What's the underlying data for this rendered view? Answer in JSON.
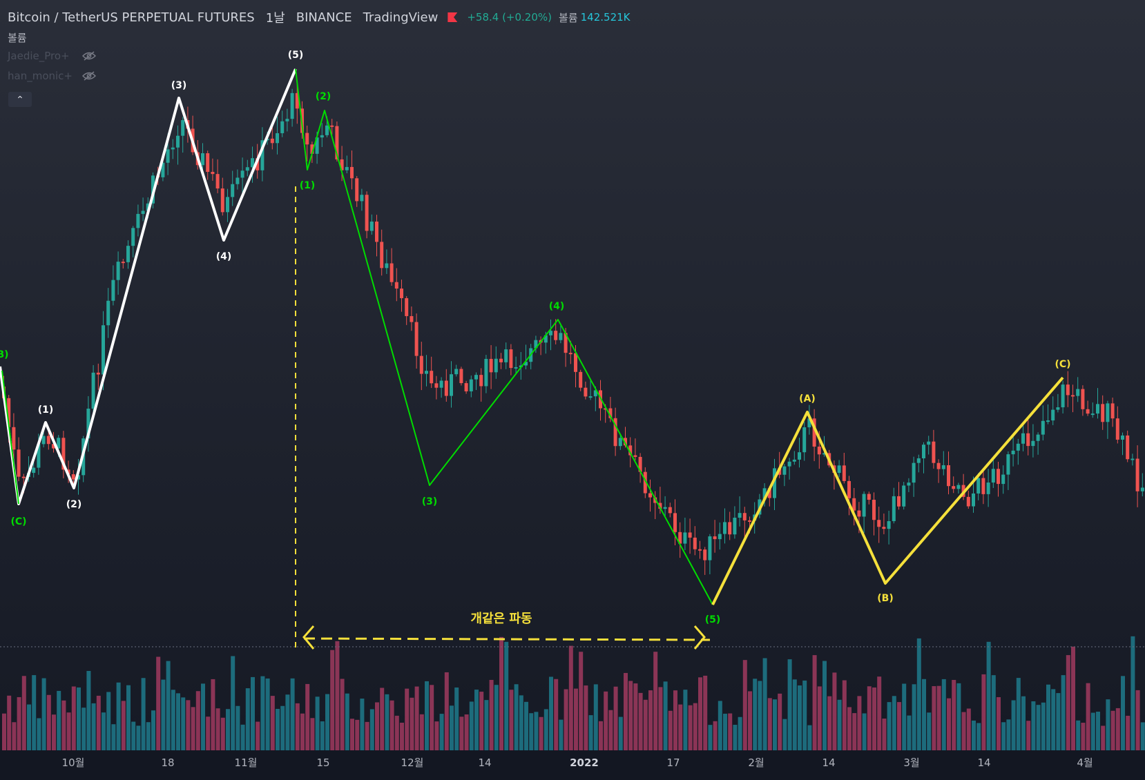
{
  "header": {
    "symbol": "Bitcoin / TetherUS PERPETUAL FUTURES",
    "interval": "1날",
    "exchange": "BINANCE",
    "provider": "TradingView",
    "change": "+58.4 (+0.20%)",
    "volume_label": "볼륨",
    "volume_value": "142.521K"
  },
  "legend": {
    "volume_label": "볼륨",
    "indicators": [
      "Jaedie_Pro+",
      "han_monic+"
    ]
  },
  "colors": {
    "up": "#26a69a",
    "down": "#ef5350",
    "wave_white": "#ffffff",
    "wave_green": "#00dc00",
    "wave_yellow": "#f5e03b"
  },
  "annotation": "개같은 파동",
  "time_axis": [
    "10월",
    "18",
    "11월",
    "15",
    "12월",
    "14",
    "2022",
    "17",
    "2월",
    "14",
    "3월",
    "14",
    "4월"
  ],
  "chart_data": {
    "type": "candlestick",
    "series_note": "price and volume series not labeled with values on screen",
    "waves": [
      {
        "color": "white",
        "labels": [
          "(C)",
          "(1)",
          "(2)",
          "(3)",
          "(4)",
          "(5)"
        ]
      },
      {
        "color": "green",
        "labels": [
          "B)",
          "(C)",
          "(1)",
          "(2)",
          "(3)",
          "(4)",
          "(5)"
        ]
      },
      {
        "color": "yellow",
        "labels": [
          "(A)",
          "(B)",
          "(C)"
        ]
      }
    ]
  }
}
